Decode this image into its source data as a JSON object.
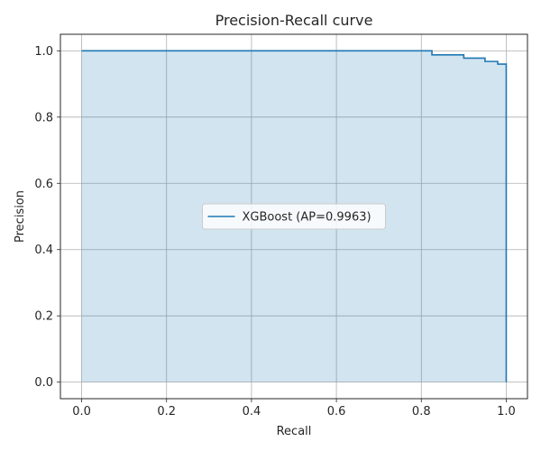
{
  "chart_data": {
    "type": "line",
    "title": "Precision-Recall curve",
    "xlabel": "Recall",
    "ylabel": "Precision",
    "xlim": [
      -0.05,
      1.05
    ],
    "ylim": [
      -0.05,
      1.05
    ],
    "xticks": [
      "0.0",
      "0.2",
      "0.4",
      "0.6",
      "0.8",
      "1.0"
    ],
    "yticks": [
      "0.0",
      "0.2",
      "0.4",
      "0.6",
      "0.8",
      "1.0"
    ],
    "grid": true,
    "legend_position": "center",
    "series": [
      {
        "name": "XGBoost (AP=0.9963)",
        "color": "#1f77b4",
        "fill_color": "#1f77b4",
        "fill_opacity": 0.2,
        "step": true,
        "x": [
          0.0,
          0.825,
          0.825,
          0.9,
          0.9,
          0.95,
          0.95,
          0.98,
          0.98,
          1.0,
          1.0
        ],
        "y": [
          1.0,
          1.0,
          0.988,
          0.988,
          0.978,
          0.978,
          0.968,
          0.968,
          0.96,
          0.96,
          0.0
        ]
      }
    ]
  }
}
